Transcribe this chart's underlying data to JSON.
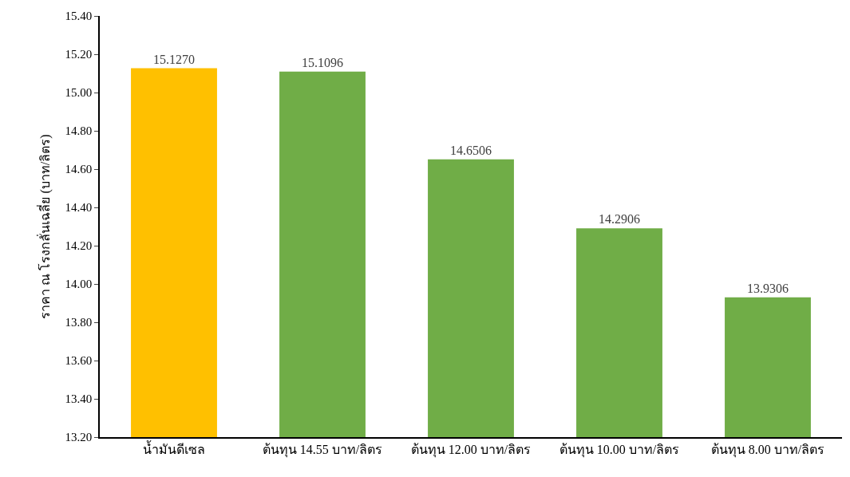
{
  "chart_data": {
    "type": "bar",
    "ylabel": "ราคา ณ โรงกลั่นเฉลี่ย (บาท/ลิตร)",
    "categories": [
      "น้ำมันดีเซล",
      "ต้นทุน 14.55 บาท/ลิตร",
      "ต้นทุน 12.00 บาท/ลิตร",
      "ต้นทุน 10.00 บาท/ลิตร",
      "ต้นทุน 8.00 บาท/ลิตร"
    ],
    "values": [
      15.127,
      15.1096,
      14.6506,
      14.2906,
      13.9306
    ],
    "value_labels": [
      "15.1270",
      "15.1096",
      "14.6506",
      "14.2906",
      "13.9306"
    ],
    "colors": [
      "#ffc000",
      "#70ad47",
      "#70ad47",
      "#70ad47",
      "#70ad47"
    ],
    "ylim": [
      13.2,
      15.4
    ],
    "yticks": [
      {
        "value": 13.2,
        "label": "13.20"
      },
      {
        "value": 13.4,
        "label": "13.40"
      },
      {
        "value": 13.6,
        "label": "13.60"
      },
      {
        "value": 13.8,
        "label": "13.80"
      },
      {
        "value": 14.0,
        "label": "14.00"
      },
      {
        "value": 14.2,
        "label": "14.20"
      },
      {
        "value": 14.4,
        "label": "14.40"
      },
      {
        "value": 14.6,
        "label": "14.60"
      },
      {
        "value": 14.8,
        "label": "14.80"
      },
      {
        "value": 15.0,
        "label": "15.00"
      },
      {
        "value": 15.2,
        "label": "15.20"
      },
      {
        "value": 15.4,
        "label": "15.40"
      }
    ]
  }
}
